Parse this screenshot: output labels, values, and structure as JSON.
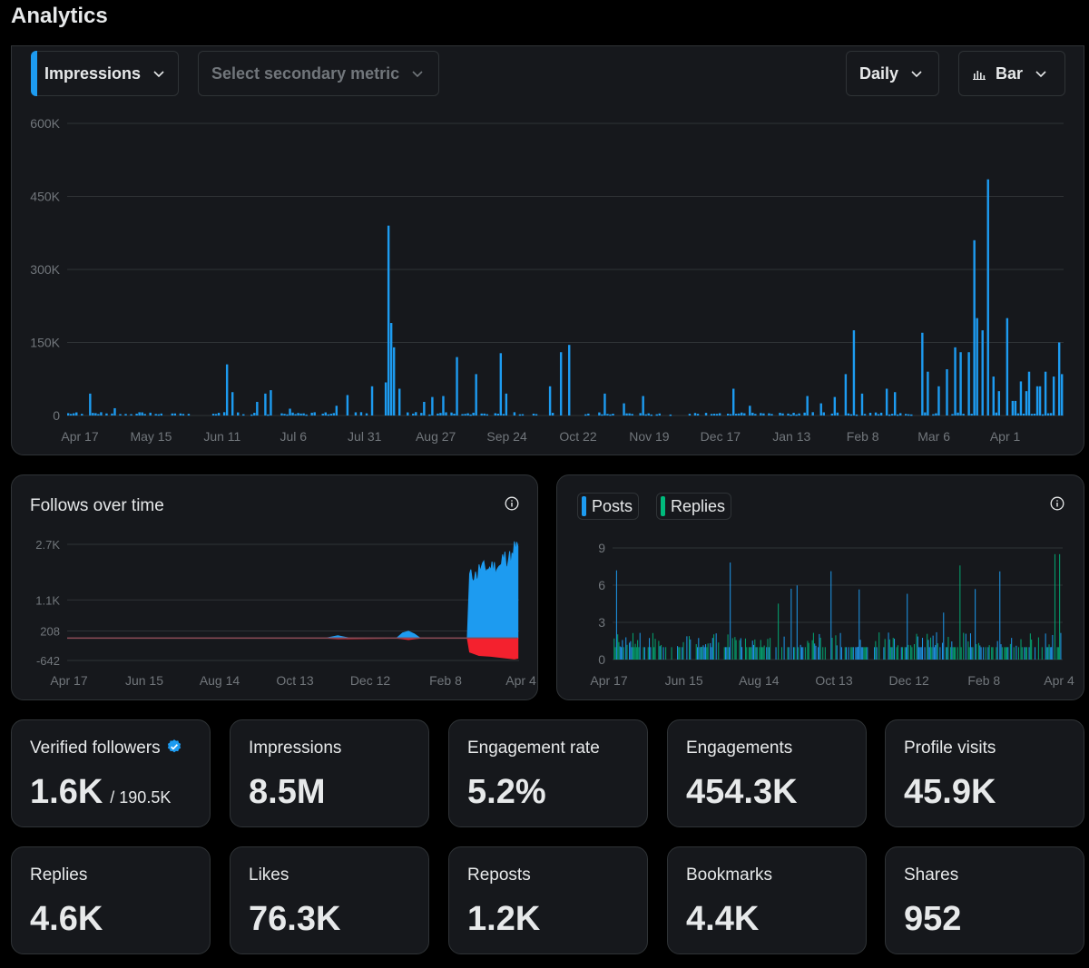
{
  "page": {
    "title": "Analytics"
  },
  "controls": {
    "primary_metric": "Impressions",
    "secondary_metric_placeholder": "Select secondary metric",
    "granularity": "Daily",
    "chart_style": "Bar"
  },
  "colors": {
    "accent": "#1d9bf0",
    "replies": "#00ba7c",
    "negative": "#f4212e",
    "grid": "#2f3336",
    "axis_text": "#71767b"
  },
  "follows_card": {
    "title": "Follows over time"
  },
  "posts_card": {
    "legend": [
      "Posts",
      "Replies"
    ]
  },
  "stats": [
    {
      "label": "Verified followers",
      "value": "1.6K",
      "sub": "/ 190.5K",
      "verified": true
    },
    {
      "label": "Impressions",
      "value": "8.5M"
    },
    {
      "label": "Engagement rate",
      "value": "5.2%"
    },
    {
      "label": "Engagements",
      "value": "454.3K"
    },
    {
      "label": "Profile visits",
      "value": "45.9K"
    },
    {
      "label": "Replies",
      "value": "4.6K"
    },
    {
      "label": "Likes",
      "value": "76.3K"
    },
    {
      "label": "Reposts",
      "value": "1.2K"
    },
    {
      "label": "Bookmarks",
      "value": "4.4K"
    },
    {
      "label": "Shares",
      "value": "952"
    }
  ],
  "chart_data": [
    {
      "type": "bar",
      "title": "",
      "xlabel": "",
      "ylabel": "",
      "ylim": [
        0,
        600000
      ],
      "yticks": [
        "0",
        "150K",
        "300K",
        "450K",
        "600K"
      ],
      "yticks_values": [
        0,
        150000,
        300000,
        450000,
        600000
      ],
      "xticks": [
        "Apr 17",
        "May 15",
        "Jun 11",
        "Jul 6",
        "Jul 31",
        "Aug 27",
        "Sep 24",
        "Oct 22",
        "Nov 19",
        "Dec 17",
        "Jan 13",
        "Feb 8",
        "Mar 6",
        "Apr 1"
      ],
      "color": "#1d9bf0",
      "n_days": 364,
      "baseline": 5000,
      "spikes": [
        [
          8,
          45000
        ],
        [
          17,
          15000
        ],
        [
          58,
          105000
        ],
        [
          60,
          48000
        ],
        [
          69,
          28000
        ],
        [
          72,
          45000
        ],
        [
          74,
          52000
        ],
        [
          81,
          14000
        ],
        [
          98,
          20000
        ],
        [
          102,
          42000
        ],
        [
          111,
          60000
        ],
        [
          116,
          68000
        ],
        [
          117,
          390000
        ],
        [
          118,
          190000
        ],
        [
          119,
          140000
        ],
        [
          121,
          55000
        ],
        [
          130,
          28000
        ],
        [
          133,
          38000
        ],
        [
          137,
          40000
        ],
        [
          142,
          120000
        ],
        [
          149,
          85000
        ],
        [
          158,
          128000
        ],
        [
          160,
          45000
        ],
        [
          176,
          60000
        ],
        [
          180,
          130000
        ],
        [
          183,
          145000
        ],
        [
          196,
          45000
        ],
        [
          203,
          25000
        ],
        [
          210,
          40000
        ],
        [
          243,
          55000
        ],
        [
          249,
          20000
        ],
        [
          270,
          40000
        ],
        [
          275,
          25000
        ],
        [
          280,
          38000
        ],
        [
          284,
          85000
        ],
        [
          287,
          175000
        ],
        [
          290,
          45000
        ],
        [
          299,
          55000
        ],
        [
          302,
          48000
        ],
        [
          312,
          170000
        ],
        [
          314,
          90000
        ],
        [
          318,
          60000
        ],
        [
          321,
          95000
        ],
        [
          324,
          140000
        ],
        [
          326,
          130000
        ],
        [
          329,
          130000
        ],
        [
          331,
          360000
        ],
        [
          332,
          200000
        ],
        [
          334,
          175000
        ],
        [
          336,
          485000
        ],
        [
          338,
          80000
        ],
        [
          340,
          50000
        ],
        [
          343,
          200000
        ],
        [
          345,
          30000
        ],
        [
          346,
          30000
        ],
        [
          348,
          70000
        ],
        [
          350,
          50000
        ],
        [
          351,
          90000
        ],
        [
          354,
          60000
        ],
        [
          355,
          60000
        ],
        [
          357,
          90000
        ],
        [
          360,
          80000
        ],
        [
          362,
          150000
        ],
        [
          363,
          85000
        ]
      ]
    },
    {
      "type": "area",
      "title": "",
      "ylim": [
        -642,
        2700
      ],
      "yticks": [
        "-642",
        "208",
        "1.1K",
        "2.7K"
      ],
      "yticks_values": [
        -642,
        208,
        1100,
        2700
      ],
      "xticks": [
        "Apr 17",
        "Jun 15",
        "Aug 14",
        "Oct 13",
        "Dec 12",
        "Feb 8",
        "Apr 4"
      ],
      "series": [
        {
          "color": "#1d9bf0",
          "points": [
            [
              0,
              0
            ],
            [
              220,
              0
            ],
            [
              230,
              70
            ],
            [
              240,
              0
            ],
            [
              280,
              0
            ],
            [
              285,
              150
            ],
            [
              290,
              200
            ],
            [
              295,
              120
            ],
            [
              300,
              0
            ],
            [
              340,
              0
            ],
            [
              342,
              1800
            ],
            [
              350,
              2000
            ],
            [
              360,
              2050
            ],
            [
              370,
              2300
            ],
            [
              380,
              2600
            ],
            [
              383,
              2500
            ]
          ]
        },
        {
          "color": "#f4212e",
          "points": [
            [
              0,
              0
            ],
            [
              220,
              0
            ],
            [
              230,
              -20
            ],
            [
              280,
              0
            ],
            [
              290,
              -40
            ],
            [
              300,
              0
            ],
            [
              340,
              0
            ],
            [
              342,
              -400
            ],
            [
              350,
              -500
            ],
            [
              360,
              -520
            ],
            [
              370,
              -560
            ],
            [
              380,
              -600
            ],
            [
              383,
              -580
            ]
          ]
        }
      ],
      "n_days": 384
    },
    {
      "type": "bar",
      "title": "",
      "ylim": [
        0,
        9
      ],
      "yticks": [
        "0",
        "3",
        "6",
        "9"
      ],
      "yticks_values": [
        0,
        3,
        6,
        9
      ],
      "xticks": [
        "Apr 17",
        "Jun 15",
        "Aug 14",
        "Oct 13",
        "Dec 12",
        "Feb 8",
        "Apr 4"
      ],
      "series": [
        {
          "name": "Posts",
          "color": "#1d9bf0"
        },
        {
          "name": "Replies",
          "color": "#00ba7c"
        }
      ],
      "n_days": 384
    }
  ]
}
